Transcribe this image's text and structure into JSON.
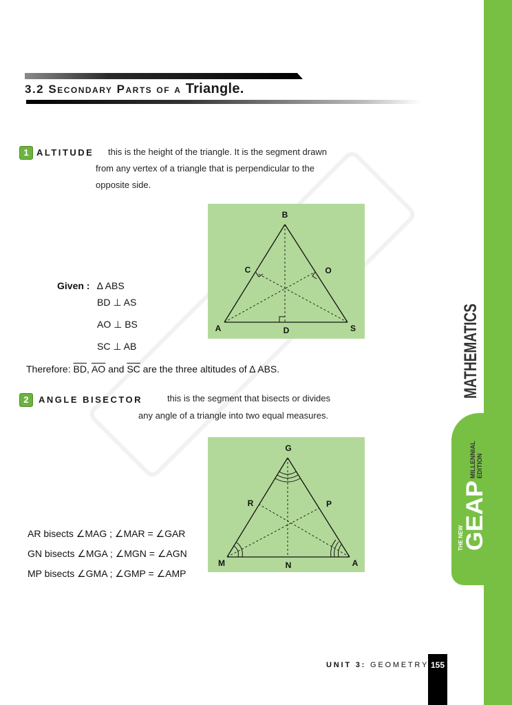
{
  "section": {
    "number": "3.2",
    "title_prefix": "Secondary Parts of a",
    "title_word": "Triangle."
  },
  "altitude": {
    "number": "1",
    "term": "ALTITUDE",
    "definition_l1": "this is the height of the triangle. It is the segment drawn",
    "definition_l2": "from any vertex of a triangle that is perpendicular to the",
    "definition_l3": "opposite side.",
    "given_label": "Given :",
    "given_1": "∆ ABS",
    "given_2": "BD ⊥ AS",
    "given_3": "AO ⊥ BS",
    "given_4": "SC  ⊥ AB",
    "therefore_label": "Therefore:",
    "seg_1": "BD",
    "seg_2": "AO",
    "seg_3": "SC",
    "and_word": "and",
    "conclusion": "are the three altitudes of ∆ ABS.",
    "figure_labels": {
      "B": "B",
      "C": "C",
      "O": "O",
      "A": "A",
      "D": "D",
      "S": "S"
    }
  },
  "angle_bisector": {
    "number": "2",
    "term": "ANGLE BISECTOR",
    "definition_l1": "this is the segment that bisects or divides",
    "definition_l2": "any angle of a triangle into two equal measures.",
    "statement_1": "AR bisects ∠MAG ; ∠MAR  = ∠GAR",
    "statement_2": "GN bisects ∠MGA ; ∠MGN = ∠AGN",
    "statement_3": "MP bisects ∠GMA ; ∠GMP  = ∠AMP",
    "figure_labels": {
      "G": "G",
      "R": "R",
      "P": "P",
      "M": "M",
      "N": "N",
      "A": "A"
    }
  },
  "sidebar": {
    "subject": "MATHEMATICS",
    "brand_small": "THE NEW",
    "brand": "GEAP",
    "edition_l1": "MILLENNIAL",
    "edition_l2": "EDITION"
  },
  "footer": {
    "unit_label": "UNIT 3:",
    "unit_name": "GEOMETRY",
    "page_number": "155"
  },
  "colors": {
    "accent_green": "#78c043",
    "figure_bg": "#b3d99a"
  }
}
